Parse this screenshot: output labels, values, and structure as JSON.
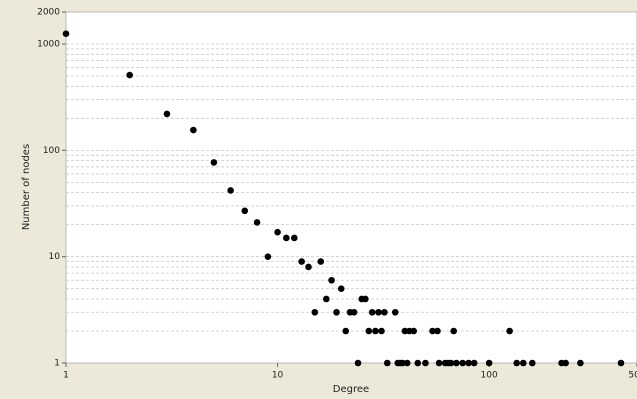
{
  "chart_data": {
    "type": "scatter",
    "xlabel": "Degree",
    "ylabel": "Number of nodes",
    "x": [
      1,
      2,
      3,
      4,
      5,
      6,
      7,
      8,
      9,
      10,
      11,
      12,
      13,
      14,
      15,
      16,
      17,
      18,
      19,
      20,
      21,
      22,
      23,
      24,
      25,
      26,
      27,
      28,
      29,
      30,
      31,
      32,
      33,
      36,
      37,
      38,
      39,
      40,
      41,
      42,
      44,
      46,
      50,
      54,
      57,
      58,
      62,
      64,
      66,
      68,
      70,
      75,
      80,
      85,
      100,
      125,
      135,
      145,
      160,
      220,
      230,
      270,
      420
    ],
    "values": [
      1250,
      510,
      220,
      155,
      77,
      42,
      27,
      21,
      10,
      17,
      15,
      15,
      9,
      8,
      3,
      9,
      4,
      6,
      3,
      5,
      2,
      3,
      3,
      1,
      4,
      4,
      2,
      3,
      2,
      3,
      2,
      3,
      1,
      3,
      1,
      1,
      1,
      2,
      1,
      2,
      2,
      1,
      1,
      2,
      2,
      1,
      1,
      1,
      1,
      2,
      1,
      1,
      1,
      1,
      1,
      2,
      1,
      1,
      1,
      1,
      1,
      1,
      1
    ],
    "color": "#000000",
    "xlim": [
      1,
      500
    ],
    "xticks": [
      1,
      10,
      100,
      500
    ],
    "xscale": "log",
    "ylim": [
      1,
      2000
    ],
    "yticks": [
      1,
      10,
      100,
      1000,
      2000
    ],
    "yscale": "log",
    "minor_grid": true
  }
}
